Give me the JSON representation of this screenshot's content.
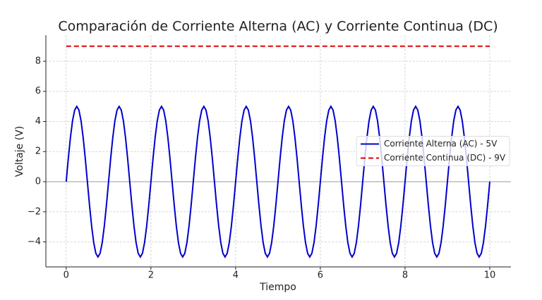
{
  "chart_data": {
    "type": "line",
    "title": "Comparación de Corriente Alterna (AC) y Corriente Continua (DC)",
    "xlabel": "Tiempo",
    "ylabel": "Voltaje (V)",
    "xlim": [
      -0.48,
      10.5
    ],
    "ylim": [
      -5.66,
      9.73
    ],
    "xticks": [
      0,
      2,
      4,
      6,
      8,
      10
    ],
    "yticks": [
      {
        "value": -4,
        "label": "−4"
      },
      {
        "value": -2,
        "label": "−2"
      },
      0,
      2,
      4,
      6,
      8
    ],
    "grid": true,
    "legend": "center right",
    "axhline": {
      "y": 0,
      "color": "#999999"
    },
    "series": [
      {
        "name": "Corriente Alterna (AC) - 5V",
        "color": "#0000cc",
        "dash": "solid",
        "x": [
          0,
          0.05,
          0.1,
          0.15,
          0.2,
          0.25,
          0.3,
          0.35,
          0.4,
          0.45,
          0.5,
          0.55,
          0.6,
          0.65,
          0.7,
          0.75,
          0.8,
          0.85,
          0.9,
          0.95,
          1,
          1.05,
          1.1,
          1.15,
          1.2,
          1.25,
          1.3,
          1.35,
          1.4,
          1.45,
          1.5,
          1.55,
          1.6,
          1.65,
          1.7,
          1.75,
          1.8,
          1.85,
          1.9,
          1.95,
          2,
          2.05,
          2.1,
          2.15,
          2.2,
          2.25,
          2.3,
          2.35,
          2.4,
          2.45,
          2.5,
          2.55,
          2.6,
          2.65,
          2.7,
          2.75,
          2.8,
          2.85,
          2.9,
          2.95,
          3,
          3.05,
          3.1,
          3.15,
          3.2,
          3.25,
          3.3,
          3.35,
          3.4,
          3.45,
          3.5,
          3.55,
          3.6,
          3.65,
          3.7,
          3.75,
          3.8,
          3.85,
          3.9,
          3.95,
          4,
          4.05,
          4.1,
          4.15,
          4.2,
          4.25,
          4.3,
          4.35,
          4.4,
          4.45,
          4.5,
          4.55,
          4.6,
          4.65,
          4.7,
          4.75,
          4.8,
          4.85,
          4.9,
          4.95,
          5,
          5.05,
          5.1,
          5.15,
          5.2,
          5.25,
          5.3,
          5.35,
          5.4,
          5.45,
          5.5,
          5.55,
          5.6,
          5.65,
          5.7,
          5.75,
          5.8,
          5.85,
          5.9,
          5.95,
          6,
          6.05,
          6.1,
          6.15,
          6.2,
          6.25,
          6.3,
          6.35,
          6.4,
          6.45,
          6.5,
          6.55,
          6.6,
          6.65,
          6.7,
          6.75,
          6.8,
          6.85,
          6.9,
          6.95,
          7,
          7.05,
          7.1,
          7.15,
          7.2,
          7.25,
          7.3,
          7.35,
          7.4,
          7.45,
          7.5,
          7.55,
          7.6,
          7.65,
          7.7,
          7.75,
          7.8,
          7.85,
          7.9,
          7.95,
          8,
          8.05,
          8.1,
          8.15,
          8.2,
          8.25,
          8.3,
          8.35,
          8.4,
          8.45,
          8.5,
          8.55,
          8.6,
          8.65,
          8.7,
          8.75,
          8.8,
          8.85,
          8.9,
          8.95,
          9,
          9.05,
          9.1,
          9.15,
          9.2,
          9.25,
          9.3,
          9.35,
          9.4,
          9.45,
          9.5,
          9.55,
          9.6,
          9.65,
          9.7,
          9.75,
          9.8,
          9.85,
          9.9,
          9.95,
          10
        ],
        "values": [
          0,
          1.55,
          2.94,
          4.05,
          4.76,
          5,
          4.76,
          4.05,
          2.94,
          1.55,
          0,
          -1.55,
          -2.94,
          -4.05,
          -4.76,
          -5,
          -4.76,
          -4.05,
          -2.94,
          -1.55,
          0,
          1.55,
          2.94,
          4.05,
          4.76,
          5,
          4.76,
          4.05,
          2.94,
          1.55,
          0,
          -1.55,
          -2.94,
          -4.05,
          -4.76,
          -5,
          -4.76,
          -4.05,
          -2.94,
          -1.55,
          0,
          1.55,
          2.94,
          4.05,
          4.76,
          5,
          4.76,
          4.05,
          2.94,
          1.55,
          0,
          -1.55,
          -2.94,
          -4.05,
          -4.76,
          -5,
          -4.76,
          -4.05,
          -2.94,
          -1.55,
          0,
          1.55,
          2.94,
          4.05,
          4.76,
          5,
          4.76,
          4.05,
          2.94,
          1.55,
          0,
          -1.55,
          -2.94,
          -4.05,
          -4.76,
          -5,
          -4.76,
          -4.05,
          -2.94,
          -1.55,
          0,
          1.55,
          2.94,
          4.05,
          4.76,
          5,
          4.76,
          4.05,
          2.94,
          1.55,
          0,
          -1.55,
          -2.94,
          -4.05,
          -4.76,
          -5,
          -4.76,
          -4.05,
          -2.94,
          -1.55,
          0,
          1.55,
          2.94,
          4.05,
          4.76,
          5,
          4.76,
          4.05,
          2.94,
          1.55,
          0,
          -1.55,
          -2.94,
          -4.05,
          -4.76,
          -5,
          -4.76,
          -4.05,
          -2.94,
          -1.55,
          0,
          1.55,
          2.94,
          4.05,
          4.76,
          5,
          4.76,
          4.05,
          2.94,
          1.55,
          0,
          -1.55,
          -2.94,
          -4.05,
          -4.76,
          -5,
          -4.76,
          -4.05,
          -2.94,
          -1.55,
          0,
          1.55,
          2.94,
          4.05,
          4.76,
          5,
          4.76,
          4.05,
          2.94,
          1.55,
          0,
          -1.55,
          -2.94,
          -4.05,
          -4.76,
          -5,
          -4.76,
          -4.05,
          -2.94,
          -1.55,
          0,
          1.55,
          2.94,
          4.05,
          4.76,
          5,
          4.76,
          4.05,
          2.94,
          1.55,
          0,
          -1.55,
          -2.94,
          -4.05,
          -4.76,
          -5,
          -4.76,
          -4.05,
          -2.94,
          -1.55,
          0,
          1.55,
          2.94,
          4.05,
          4.76,
          5,
          4.76,
          4.05,
          2.94,
          1.55,
          0,
          -1.55,
          -2.94,
          -4.05,
          -4.76,
          -5,
          -4.76,
          -4.05,
          -2.94,
          -1.55,
          0
        ]
      },
      {
        "name": "Corriente Continua (DC) - 9V",
        "color": "#dd0000",
        "dash": "dashed",
        "x": [
          0,
          10
        ],
        "values": [
          9,
          9
        ]
      }
    ]
  }
}
